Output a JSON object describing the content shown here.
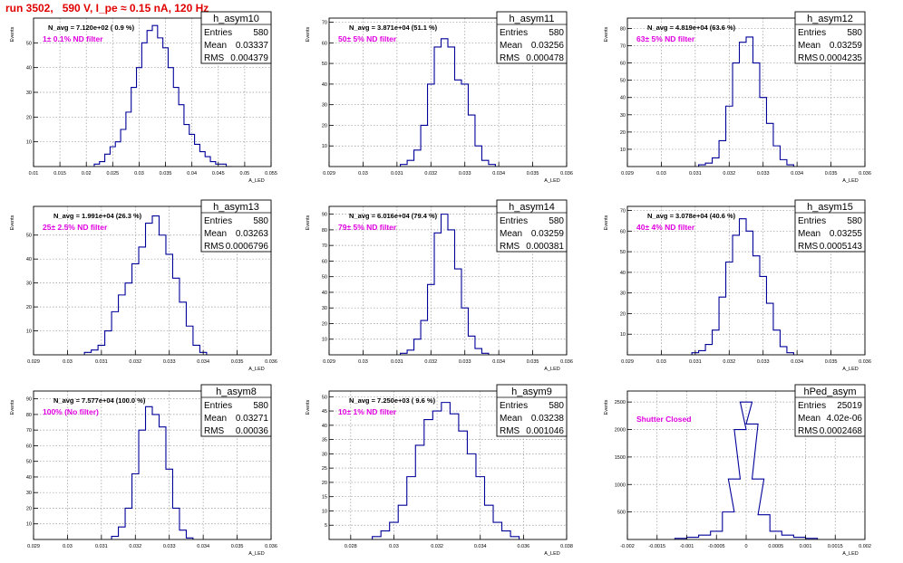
{
  "page": {
    "title": "run 3502,   590 V, I_pe ≈ 0.15 nA, 120 Hz",
    "colors": {
      "title": "#e00000",
      "hist": "#000099",
      "annotation": "#e000e0",
      "grid": "#999999"
    }
  },
  "chart_data": [
    {
      "type": "histogram",
      "name": "h_asym10",
      "stats": [
        [
          "Entries",
          "580"
        ],
        [
          "Mean",
          "0.03337"
        ],
        [
          "RMS",
          "0.004379"
        ]
      ],
      "navg": "N_avg = 7.120e+02 ( 0.9 %)",
      "label": "1± 0.1% ND filter",
      "xlabel": "A_LED",
      "ylabel": "Events",
      "xlim": [
        0.01,
        0.055
      ],
      "ylim": [
        0,
        60
      ],
      "xticks": [
        0.01,
        0.015,
        0.02,
        0.025,
        0.03,
        0.035,
        0.04,
        0.045,
        0.05,
        0.055
      ],
      "xtick_labels": [
        "0.01",
        "0.015",
        "0.02",
        "0.025",
        "0.03",
        "0.035",
        "0.04",
        "0.045",
        "0.05",
        "0.055"
      ],
      "yticks": [
        10,
        20,
        30,
        40,
        50
      ],
      "ytick_labels": [
        "10",
        "20",
        "30",
        "40",
        "50"
      ],
      "x": [
        0.022,
        0.023,
        0.024,
        0.025,
        0.026,
        0.027,
        0.028,
        0.029,
        0.03,
        0.031,
        0.032,
        0.033,
        0.034,
        0.035,
        0.036,
        0.037,
        0.038,
        0.039,
        0.04,
        0.041,
        0.042,
        0.043,
        0.044,
        0.045,
        0.046,
        0.047
      ],
      "values": [
        1,
        2,
        5,
        8,
        10,
        15,
        22,
        32,
        40,
        50,
        55,
        57,
        52,
        48,
        40,
        32,
        25,
        17,
        13,
        9,
        6,
        4,
        2,
        1,
        1,
        0
      ]
    },
    {
      "type": "histogram",
      "name": "h_asym11",
      "stats": [
        [
          "Entries",
          "580"
        ],
        [
          "Mean",
          "0.03256"
        ],
        [
          "RMS",
          "0.000478"
        ]
      ],
      "navg": "N_avg = 3.871e+04 (51.1 %)",
      "label": "50± 5% ND filter",
      "xlabel": "A_LED",
      "ylabel": "Events",
      "xlim": [
        0.029,
        0.036
      ],
      "ylim": [
        0,
        72
      ],
      "xticks": [
        0.029,
        0.03,
        0.031,
        0.032,
        0.033,
        0.034,
        0.035,
        0.036
      ],
      "xtick_labels": [
        "0.029",
        "0.03",
        "0.031",
        "0.032",
        "0.033",
        "0.034",
        "0.035",
        "0.036"
      ],
      "yticks": [
        10,
        20,
        30,
        40,
        50,
        60,
        70
      ],
      "ytick_labels": [
        "10",
        "20",
        "30",
        "40",
        "50",
        "60",
        "70"
      ],
      "x": [
        0.0312,
        0.0314,
        0.0316,
        0.0318,
        0.032,
        0.0322,
        0.0324,
        0.0326,
        0.0328,
        0.033,
        0.0332,
        0.0334,
        0.0336,
        0.0338
      ],
      "values": [
        1,
        3,
        8,
        20,
        40,
        58,
        62,
        58,
        42,
        40,
        25,
        10,
        3,
        1
      ]
    },
    {
      "type": "histogram",
      "name": "h_asym12",
      "stats": [
        [
          "Entries",
          "580"
        ],
        [
          "Mean",
          "0.03259"
        ],
        [
          "RMS",
          "0.0004235"
        ]
      ],
      "navg": "N_avg = 4.819e+04 (63.6 %)",
      "label": "63± 5% ND filter",
      "xlabel": "A_LED",
      "ylabel": "Events",
      "xlim": [
        0.029,
        0.036
      ],
      "ylim": [
        0,
        86
      ],
      "xticks": [
        0.029,
        0.03,
        0.031,
        0.032,
        0.033,
        0.034,
        0.035,
        0.036
      ],
      "xtick_labels": [
        "0.029",
        "0.03",
        "0.031",
        "0.032",
        "0.033",
        "0.034",
        "0.035",
        "0.036"
      ],
      "yticks": [
        10,
        20,
        30,
        40,
        50,
        60,
        70,
        80
      ],
      "ytick_labels": [
        "10",
        "20",
        "30",
        "40",
        "50",
        "60",
        "70",
        "80"
      ],
      "x": [
        0.0312,
        0.0314,
        0.0316,
        0.0318,
        0.032,
        0.0322,
        0.0324,
        0.0326,
        0.0328,
        0.033,
        0.0332,
        0.0334,
        0.0336,
        0.0338
      ],
      "values": [
        1,
        2,
        5,
        15,
        35,
        60,
        72,
        75,
        60,
        40,
        25,
        12,
        4,
        1
      ]
    },
    {
      "type": "histogram",
      "name": "h_asym13",
      "stats": [
        [
          "Entries",
          "580"
        ],
        [
          "Mean",
          "0.03263"
        ],
        [
          "RMS",
          "0.0006796"
        ]
      ],
      "navg": "N_avg = 1.991e+04 (26.3 %)",
      "label": "25± 2.5% ND filter",
      "xlabel": "A_LED",
      "ylabel": "Events",
      "xlim": [
        0.029,
        0.036
      ],
      "ylim": [
        0,
        62
      ],
      "xticks": [
        0.029,
        0.03,
        0.031,
        0.032,
        0.033,
        0.034,
        0.035,
        0.036
      ],
      "xtick_labels": [
        "0.029",
        "0.03",
        "0.031",
        "0.032",
        "0.033",
        "0.034",
        "0.035",
        "0.036"
      ],
      "yticks": [
        10,
        20,
        30,
        40,
        50
      ],
      "ytick_labels": [
        "10",
        "20",
        "30",
        "40",
        "50"
      ],
      "x": [
        0.0306,
        0.0308,
        0.031,
        0.0312,
        0.0314,
        0.0316,
        0.0318,
        0.032,
        0.0322,
        0.0324,
        0.0326,
        0.0328,
        0.033,
        0.0332,
        0.0334,
        0.0336,
        0.0338,
        0.034
      ],
      "values": [
        1,
        2,
        4,
        10,
        18,
        25,
        30,
        38,
        45,
        55,
        58,
        50,
        42,
        32,
        22,
        12,
        4,
        1
      ]
    },
    {
      "type": "histogram",
      "name": "h_asym14",
      "stats": [
        [
          "Entries",
          "580"
        ],
        [
          "Mean",
          "0.03259"
        ],
        [
          "RMS",
          "0.000381"
        ]
      ],
      "navg": "N_avg = 6.016e+04 (79.4 %)",
      "label": "79± 5% ND filter",
      "xlabel": "A_LED",
      "ylabel": "Events",
      "xlim": [
        0.029,
        0.036
      ],
      "ylim": [
        0,
        95
      ],
      "xticks": [
        0.029,
        0.03,
        0.031,
        0.032,
        0.033,
        0.034,
        0.035,
        0.036
      ],
      "xtick_labels": [
        "0.029",
        "0.03",
        "0.031",
        "0.032",
        "0.033",
        "0.034",
        "0.035",
        "0.036"
      ],
      "yticks": [
        10,
        20,
        30,
        40,
        50,
        60,
        70,
        80,
        90
      ],
      "ytick_labels": [
        "10",
        "20",
        "30",
        "40",
        "50",
        "60",
        "70",
        "80",
        "90"
      ],
      "x": [
        0.0312,
        0.0314,
        0.0316,
        0.0318,
        0.032,
        0.0322,
        0.0324,
        0.0326,
        0.0328,
        0.033,
        0.0332,
        0.0334,
        0.0336
      ],
      "values": [
        1,
        3,
        10,
        22,
        45,
        78,
        90,
        80,
        55,
        30,
        12,
        4,
        1
      ]
    },
    {
      "type": "histogram",
      "name": "h_asym15",
      "stats": [
        [
          "Entries",
          "580"
        ],
        [
          "Mean",
          "0.03255"
        ],
        [
          "RMS",
          "0.0005143"
        ]
      ],
      "navg": "N_avg = 3.078e+04 (40.6 %)",
      "label": "40± 4% ND filter",
      "xlabel": "A_LED",
      "ylabel": "Events",
      "xlim": [
        0.029,
        0.036
      ],
      "ylim": [
        0,
        72
      ],
      "xticks": [
        0.029,
        0.03,
        0.031,
        0.032,
        0.033,
        0.034,
        0.035,
        0.036
      ],
      "xtick_labels": [
        "0.029",
        "0.03",
        "0.031",
        "0.032",
        "0.033",
        "0.034",
        "0.035",
        "0.036"
      ],
      "yticks": [
        10,
        20,
        30,
        40,
        50,
        60,
        70
      ],
      "ytick_labels": [
        "10",
        "20",
        "30",
        "40",
        "50",
        "60",
        "70"
      ],
      "x": [
        0.031,
        0.0312,
        0.0314,
        0.0316,
        0.0318,
        0.032,
        0.0322,
        0.0324,
        0.0326,
        0.0328,
        0.033,
        0.0332,
        0.0334,
        0.0336,
        0.0338
      ],
      "values": [
        1,
        2,
        5,
        12,
        28,
        45,
        58,
        66,
        60,
        48,
        38,
        25,
        12,
        4,
        1
      ]
    },
    {
      "type": "histogram",
      "name": "h_asym8",
      "stats": [
        [
          "Entries",
          "580"
        ],
        [
          "Mean",
          "0.03271"
        ],
        [
          "RMS",
          "0.00036"
        ]
      ],
      "navg": "N_avg = 7.577e+04 (100.0 %)",
      "label": "100% (No filter)",
      "xlabel": "A_LED",
      "ylabel": "Events",
      "xlim": [
        0.029,
        0.036
      ],
      "ylim": [
        0,
        95
      ],
      "xticks": [
        0.029,
        0.03,
        0.031,
        0.032,
        0.033,
        0.034,
        0.035,
        0.036
      ],
      "xtick_labels": [
        "0.029",
        "0.03",
        "0.031",
        "0.032",
        "0.033",
        "0.034",
        "0.035",
        "0.036"
      ],
      "yticks": [
        10,
        20,
        30,
        40,
        50,
        60,
        70,
        80,
        90
      ],
      "ytick_labels": [
        "10",
        "20",
        "30",
        "40",
        "50",
        "60",
        "70",
        "80",
        "90"
      ],
      "x": [
        0.0314,
        0.0316,
        0.0318,
        0.032,
        0.0322,
        0.0324,
        0.0326,
        0.0328,
        0.033,
        0.0332,
        0.0334,
        0.0336
      ],
      "values": [
        2,
        8,
        20,
        42,
        70,
        85,
        80,
        72,
        45,
        20,
        6,
        1
      ]
    },
    {
      "type": "histogram",
      "name": "h_asym9",
      "stats": [
        [
          "Entries",
          "580"
        ],
        [
          "Mean",
          "0.03238"
        ],
        [
          "RMS",
          "0.001046"
        ]
      ],
      "navg": "N_avg = 7.250e+03 ( 9.6 %)",
      "label": "10± 1% ND filter",
      "xlabel": "A_LED",
      "ylabel": "Events",
      "xlim": [
        0.027,
        0.038
      ],
      "ylim": [
        0,
        52
      ],
      "xticks": [
        0.028,
        0.03,
        0.032,
        0.034,
        0.036,
        0.038
      ],
      "xtick_labels": [
        "0.028",
        "0.03",
        "0.032",
        "0.034",
        "0.036",
        "0.038"
      ],
      "yticks": [
        5,
        10,
        15,
        20,
        25,
        30,
        35,
        40,
        45,
        50
      ],
      "ytick_labels": [
        "5",
        "10",
        "15",
        "20",
        "25",
        "30",
        "35",
        "40",
        "45",
        "50"
      ],
      "x": [
        0.0292,
        0.0296,
        0.03,
        0.0304,
        0.0308,
        0.0312,
        0.0316,
        0.032,
        0.0324,
        0.0328,
        0.0332,
        0.0336,
        0.034,
        0.0344,
        0.0348,
        0.0352,
        0.0356
      ],
      "values": [
        1,
        3,
        6,
        12,
        22,
        33,
        42,
        45,
        48,
        44,
        38,
        30,
        22,
        12,
        6,
        3,
        1
      ]
    },
    {
      "type": "histogram",
      "name": "hPed_asym",
      "stats": [
        [
          "Entries",
          "25019"
        ],
        [
          "Mean",
          "4.02e-06"
        ],
        [
          "RMS",
          "0.0002468"
        ]
      ],
      "navg": "",
      "label": "Shutter Closed",
      "xlabel": "A_LED",
      "ylabel": "Events",
      "xlim": [
        -0.002,
        0.002
      ],
      "ylim": [
        0,
        2700
      ],
      "xticks": [
        -0.002,
        -0.0015,
        -0.001,
        -0.0005,
        0,
        0.0005,
        0.001,
        0.0015,
        0.002
      ],
      "xtick_labels": [
        "-0.002",
        "-0.0015",
        "-0.001",
        "-0.0005",
        "0",
        "0.0005",
        "0.001",
        "0.0015",
        "0.002"
      ],
      "yticks": [
        500,
        1000,
        1500,
        2000,
        2500
      ],
      "ytick_labels": [
        "500",
        "1000",
        "1500",
        "2000",
        "2500"
      ],
      "x": [
        -0.0011,
        -0.0009,
        -0.0007,
        -0.0005,
        -0.0003,
        -0.0002,
        -0.0001,
        0,
        0.0001,
        0.0002,
        0.0003,
        0.0005,
        0.0007,
        0.0009,
        0.0011
      ],
      "values": [
        20,
        40,
        80,
        150,
        500,
        1100,
        2000,
        2500,
        2100,
        1100,
        450,
        150,
        80,
        40,
        20
      ]
    }
  ]
}
